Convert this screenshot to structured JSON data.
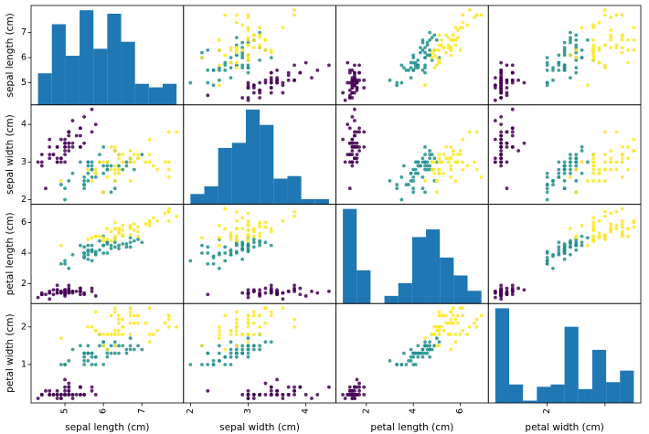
{
  "chart_data": {
    "type": "scatter",
    "variables": [
      {
        "name": "sepal length (cm)",
        "range": [
          4.3,
          7.9
        ],
        "ticks": [
          5,
          6,
          7
        ]
      },
      {
        "name": "sepal width (cm)",
        "range": [
          2.0,
          4.4
        ],
        "ticks": [
          2,
          3,
          4
        ]
      },
      {
        "name": "petal length (cm)",
        "range": [
          1.0,
          6.9
        ],
        "ticks": [
          2,
          4,
          6
        ]
      },
      {
        "name": "petal width (cm)",
        "range": [
          0.1,
          2.5
        ],
        "ticks": [
          1,
          2
        ]
      }
    ],
    "x_tick_labels": [
      [
        "5",
        "6",
        "7"
      ],
      [
        "2",
        "3",
        "4"
      ],
      [
        "2",
        "4",
        "6"
      ],
      [
        "2"
      ]
    ],
    "y_tick_labels": [
      [
        "5",
        "6",
        "7"
      ],
      [
        "2",
        "3",
        "4"
      ],
      [
        "2",
        "4",
        "6"
      ],
      [
        "1",
        "2"
      ]
    ],
    "class_colors": [
      "#440154",
      "#21918c",
      "#fde725"
    ],
    "histogram": {
      "bins": 10,
      "color": "#1f77b4",
      "counts": [
        [
          9,
          23,
          14,
          27,
          16,
          26,
          18,
          6,
          5,
          6
        ],
        [
          4,
          7,
          22,
          24,
          37,
          31,
          10,
          11,
          2,
          2
        ],
        [
          37,
          13,
          0,
          3,
          8,
          26,
          29,
          18,
          11,
          5
        ],
        [
          41,
          8,
          1,
          7,
          8,
          33,
          6,
          23,
          9,
          14
        ]
      ]
    },
    "points": [
      [
        5.1,
        3.5,
        1.4,
        0.2,
        0
      ],
      [
        4.9,
        3.0,
        1.4,
        0.2,
        0
      ],
      [
        4.7,
        3.2,
        1.3,
        0.2,
        0
      ],
      [
        4.6,
        3.1,
        1.5,
        0.2,
        0
      ],
      [
        5.0,
        3.6,
        1.4,
        0.2,
        0
      ],
      [
        5.4,
        3.9,
        1.7,
        0.4,
        0
      ],
      [
        4.6,
        3.4,
        1.4,
        0.3,
        0
      ],
      [
        5.0,
        3.4,
        1.5,
        0.2,
        0
      ],
      [
        4.4,
        2.9,
        1.4,
        0.2,
        0
      ],
      [
        4.9,
        3.1,
        1.5,
        0.1,
        0
      ],
      [
        5.4,
        3.7,
        1.5,
        0.2,
        0
      ],
      [
        4.8,
        3.4,
        1.6,
        0.2,
        0
      ],
      [
        4.8,
        3.0,
        1.4,
        0.1,
        0
      ],
      [
        4.3,
        3.0,
        1.1,
        0.1,
        0
      ],
      [
        5.8,
        4.0,
        1.2,
        0.2,
        0
      ],
      [
        5.7,
        4.4,
        1.5,
        0.4,
        0
      ],
      [
        5.4,
        3.9,
        1.3,
        0.4,
        0
      ],
      [
        5.1,
        3.5,
        1.4,
        0.3,
        0
      ],
      [
        5.7,
        3.8,
        1.7,
        0.3,
        0
      ],
      [
        5.1,
        3.8,
        1.5,
        0.3,
        0
      ],
      [
        5.4,
        3.4,
        1.7,
        0.2,
        0
      ],
      [
        5.1,
        3.7,
        1.5,
        0.4,
        0
      ],
      [
        4.6,
        3.6,
        1.0,
        0.2,
        0
      ],
      [
        5.1,
        3.3,
        1.7,
        0.5,
        0
      ],
      [
        4.8,
        3.4,
        1.9,
        0.2,
        0
      ],
      [
        5.0,
        3.0,
        1.6,
        0.2,
        0
      ],
      [
        5.0,
        3.4,
        1.6,
        0.4,
        0
      ],
      [
        5.2,
        3.5,
        1.5,
        0.2,
        0
      ],
      [
        5.2,
        3.4,
        1.4,
        0.2,
        0
      ],
      [
        4.7,
        3.2,
        1.6,
        0.2,
        0
      ],
      [
        4.8,
        3.1,
        1.6,
        0.2,
        0
      ],
      [
        5.4,
        3.4,
        1.5,
        0.4,
        0
      ],
      [
        5.2,
        4.1,
        1.5,
        0.1,
        0
      ],
      [
        5.5,
        4.2,
        1.4,
        0.2,
        0
      ],
      [
        4.9,
        3.1,
        1.5,
        0.2,
        0
      ],
      [
        5.0,
        3.2,
        1.2,
        0.2,
        0
      ],
      [
        5.5,
        3.5,
        1.3,
        0.2,
        0
      ],
      [
        4.9,
        3.6,
        1.4,
        0.1,
        0
      ],
      [
        4.4,
        3.0,
        1.3,
        0.2,
        0
      ],
      [
        5.1,
        3.4,
        1.5,
        0.2,
        0
      ],
      [
        5.0,
        3.5,
        1.3,
        0.3,
        0
      ],
      [
        4.5,
        2.3,
        1.3,
        0.3,
        0
      ],
      [
        4.4,
        3.2,
        1.3,
        0.2,
        0
      ],
      [
        5.0,
        3.5,
        1.6,
        0.6,
        0
      ],
      [
        5.1,
        3.8,
        1.9,
        0.4,
        0
      ],
      [
        4.8,
        3.0,
        1.4,
        0.3,
        0
      ],
      [
        5.1,
        3.8,
        1.6,
        0.2,
        0
      ],
      [
        4.6,
        3.2,
        1.4,
        0.2,
        0
      ],
      [
        5.3,
        3.7,
        1.5,
        0.2,
        0
      ],
      [
        5.0,
        3.3,
        1.4,
        0.2,
        0
      ],
      [
        7.0,
        3.2,
        4.7,
        1.4,
        1
      ],
      [
        6.4,
        3.2,
        4.5,
        1.5,
        1
      ],
      [
        6.9,
        3.1,
        4.9,
        1.5,
        1
      ],
      [
        5.5,
        2.3,
        4.0,
        1.3,
        1
      ],
      [
        6.5,
        2.8,
        4.6,
        1.5,
        1
      ],
      [
        5.7,
        2.8,
        4.5,
        1.3,
        1
      ],
      [
        6.3,
        3.3,
        4.7,
        1.6,
        1
      ],
      [
        4.9,
        2.4,
        3.3,
        1.0,
        1
      ],
      [
        6.6,
        2.9,
        4.6,
        1.3,
        1
      ],
      [
        5.2,
        2.7,
        3.9,
        1.4,
        1
      ],
      [
        5.0,
        2.0,
        3.5,
        1.0,
        1
      ],
      [
        5.9,
        3.0,
        4.2,
        1.5,
        1
      ],
      [
        6.0,
        2.2,
        4.0,
        1.0,
        1
      ],
      [
        6.1,
        2.9,
        4.7,
        1.4,
        1
      ],
      [
        5.6,
        2.9,
        3.6,
        1.3,
        1
      ],
      [
        6.7,
        3.1,
        4.4,
        1.4,
        1
      ],
      [
        5.6,
        3.0,
        4.5,
        1.5,
        1
      ],
      [
        5.8,
        2.7,
        4.1,
        1.0,
        1
      ],
      [
        6.2,
        2.2,
        4.5,
        1.5,
        1
      ],
      [
        5.6,
        2.5,
        3.9,
        1.1,
        1
      ],
      [
        5.9,
        3.2,
        4.8,
        1.8,
        1
      ],
      [
        6.1,
        2.8,
        4.0,
        1.3,
        1
      ],
      [
        6.3,
        2.5,
        4.9,
        1.5,
        1
      ],
      [
        6.1,
        2.8,
        4.7,
        1.2,
        1
      ],
      [
        6.4,
        2.9,
        4.3,
        1.3,
        1
      ],
      [
        6.6,
        3.0,
        4.4,
        1.4,
        1
      ],
      [
        6.8,
        2.8,
        4.8,
        1.4,
        1
      ],
      [
        6.7,
        3.0,
        5.0,
        1.7,
        1
      ],
      [
        6.0,
        2.9,
        4.5,
        1.5,
        1
      ],
      [
        5.7,
        2.6,
        3.5,
        1.0,
        1
      ],
      [
        5.5,
        2.4,
        3.8,
        1.1,
        1
      ],
      [
        5.5,
        2.4,
        3.7,
        1.0,
        1
      ],
      [
        5.8,
        2.7,
        3.9,
        1.2,
        1
      ],
      [
        6.0,
        2.7,
        5.1,
        1.6,
        1
      ],
      [
        5.4,
        3.0,
        4.5,
        1.5,
        1
      ],
      [
        6.0,
        3.4,
        4.5,
        1.6,
        1
      ],
      [
        6.7,
        3.1,
        4.7,
        1.5,
        1
      ],
      [
        6.3,
        2.3,
        4.4,
        1.3,
        1
      ],
      [
        5.6,
        3.0,
        4.1,
        1.3,
        1
      ],
      [
        5.5,
        2.5,
        4.0,
        1.3,
        1
      ],
      [
        5.5,
        2.6,
        4.4,
        1.2,
        1
      ],
      [
        6.1,
        3.0,
        4.6,
        1.4,
        1
      ],
      [
        5.8,
        2.6,
        4.0,
        1.2,
        1
      ],
      [
        5.0,
        2.3,
        3.3,
        1.0,
        1
      ],
      [
        5.6,
        2.7,
        4.2,
        1.3,
        1
      ],
      [
        5.7,
        3.0,
        4.2,
        1.2,
        1
      ],
      [
        5.7,
        2.9,
        4.2,
        1.3,
        1
      ],
      [
        6.2,
        2.9,
        4.3,
        1.3,
        1
      ],
      [
        5.1,
        2.5,
        3.0,
        1.1,
        1
      ],
      [
        5.7,
        2.8,
        4.1,
        1.3,
        1
      ],
      [
        6.3,
        3.3,
        6.0,
        2.5,
        2
      ],
      [
        5.8,
        2.7,
        5.1,
        1.9,
        2
      ],
      [
        7.1,
        3.0,
        5.9,
        2.1,
        2
      ],
      [
        6.3,
        2.9,
        5.6,
        1.8,
        2
      ],
      [
        6.5,
        3.0,
        5.8,
        2.2,
        2
      ],
      [
        7.6,
        3.0,
        6.6,
        2.1,
        2
      ],
      [
        4.9,
        2.5,
        4.5,
        1.7,
        2
      ],
      [
        7.3,
        2.9,
        6.3,
        1.8,
        2
      ],
      [
        6.7,
        2.5,
        5.8,
        1.8,
        2
      ],
      [
        7.2,
        3.6,
        6.1,
        2.5,
        2
      ],
      [
        6.5,
        3.2,
        5.1,
        2.0,
        2
      ],
      [
        6.4,
        2.7,
        5.3,
        1.9,
        2
      ],
      [
        6.8,
        3.0,
        5.5,
        2.1,
        2
      ],
      [
        5.7,
        2.5,
        5.0,
        2.0,
        2
      ],
      [
        5.8,
        2.8,
        5.1,
        2.4,
        2
      ],
      [
        6.4,
        3.2,
        5.3,
        2.3,
        2
      ],
      [
        6.5,
        3.0,
        5.5,
        1.8,
        2
      ],
      [
        7.7,
        3.8,
        6.7,
        2.2,
        2
      ],
      [
        7.7,
        2.6,
        6.9,
        2.3,
        2
      ],
      [
        6.0,
        2.2,
        5.0,
        1.5,
        2
      ],
      [
        6.9,
        3.2,
        5.7,
        2.3,
        2
      ],
      [
        5.6,
        2.8,
        4.9,
        2.0,
        2
      ],
      [
        7.7,
        2.8,
        6.7,
        2.0,
        2
      ],
      [
        6.3,
        2.7,
        4.9,
        1.8,
        2
      ],
      [
        6.7,
        3.3,
        5.7,
        2.1,
        2
      ],
      [
        7.2,
        3.2,
        6.0,
        1.8,
        2
      ],
      [
        6.2,
        2.8,
        4.8,
        1.8,
        2
      ],
      [
        6.1,
        3.0,
        4.9,
        1.8,
        2
      ],
      [
        6.4,
        2.8,
        5.6,
        2.1,
        2
      ],
      [
        7.2,
        3.0,
        5.8,
        1.6,
        2
      ],
      [
        7.4,
        2.8,
        6.1,
        1.9,
        2
      ],
      [
        7.9,
        3.8,
        6.4,
        2.0,
        2
      ],
      [
        6.4,
        2.8,
        5.6,
        2.2,
        2
      ],
      [
        6.3,
        2.8,
        5.1,
        1.5,
        2
      ],
      [
        6.1,
        2.6,
        5.6,
        1.4,
        2
      ],
      [
        7.7,
        3.0,
        6.1,
        2.3,
        2
      ],
      [
        6.3,
        3.4,
        5.6,
        2.4,
        2
      ],
      [
        6.4,
        3.1,
        5.5,
        1.8,
        2
      ],
      [
        6.0,
        3.0,
        4.8,
        1.8,
        2
      ],
      [
        6.9,
        3.1,
        5.4,
        2.1,
        2
      ],
      [
        6.7,
        3.1,
        5.6,
        2.4,
        2
      ],
      [
        6.9,
        3.1,
        5.1,
        2.3,
        2
      ],
      [
        5.8,
        2.7,
        5.1,
        1.9,
        2
      ],
      [
        6.8,
        3.2,
        5.9,
        2.3,
        2
      ],
      [
        6.7,
        3.3,
        5.7,
        2.5,
        2
      ],
      [
        6.7,
        3.0,
        5.2,
        2.3,
        2
      ],
      [
        6.3,
        2.5,
        5.0,
        1.9,
        2
      ],
      [
        6.5,
        3.0,
        5.2,
        2.0,
        2
      ],
      [
        6.2,
        3.4,
        5.4,
        2.3,
        2
      ],
      [
        5.9,
        3.0,
        5.1,
        1.8,
        2
      ]
    ]
  }
}
